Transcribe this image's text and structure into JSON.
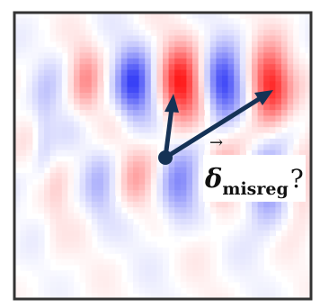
{
  "figure": {
    "kind": "residual error map with misregistration vector",
    "colormap": {
      "positive": "#ee2222",
      "negative": "#2233ee",
      "zero": "#ffffff"
    },
    "frame_color": "#333333",
    "arrow_color": "#153255"
  },
  "label": {
    "vector_symbol": "δ",
    "arrow_glyph": "→",
    "subscript": "misreg",
    "question": "?"
  }
}
